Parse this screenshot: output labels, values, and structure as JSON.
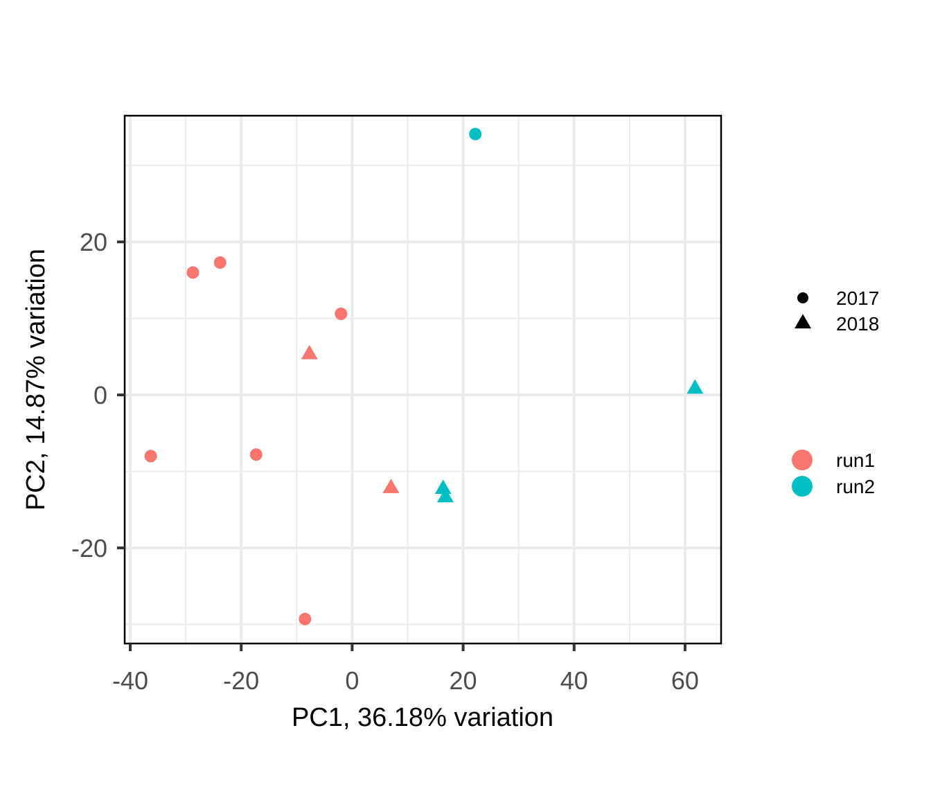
{
  "chart_data": {
    "type": "scatter",
    "title": "",
    "xlabel": "PC1, 36.18% variation",
    "ylabel": "PC2, 14.87% variation",
    "xlim": [
      -41,
      66.5
    ],
    "ylim": [
      -32.5,
      36.5
    ],
    "x_ticks": [
      -40,
      -20,
      0,
      20,
      40,
      60
    ],
    "y_ticks": [
      -20,
      0,
      20
    ],
    "x_tick_labels": [
      "-40",
      "-20",
      "0",
      "20",
      "40",
      "60"
    ],
    "y_tick_labels": [
      "-20",
      "0",
      "20"
    ],
    "grid": true,
    "legend_position": "right",
    "shape_legend": [
      {
        "label": "2017",
        "shape": "circle"
      },
      {
        "label": "2018",
        "shape": "triangle"
      }
    ],
    "color_legend": [
      {
        "label": "run1",
        "color": "#F8766D"
      },
      {
        "label": "run2",
        "color": "#00BFC4"
      }
    ],
    "points": [
      {
        "x": -36.3,
        "y": -8.0,
        "run": "run1",
        "year": "2017"
      },
      {
        "x": -28.7,
        "y": 16.0,
        "run": "run1",
        "year": "2017"
      },
      {
        "x": -23.8,
        "y": 17.3,
        "run": "run1",
        "year": "2017"
      },
      {
        "x": -17.3,
        "y": -7.8,
        "run": "run1",
        "year": "2017"
      },
      {
        "x": -2.0,
        "y": 10.6,
        "run": "run1",
        "year": "2017"
      },
      {
        "x": -8.5,
        "y": -29.3,
        "run": "run1",
        "year": "2017"
      },
      {
        "x": -7.7,
        "y": 5.3,
        "run": "run1",
        "year": "2018"
      },
      {
        "x": 7.0,
        "y": -12.2,
        "run": "run1",
        "year": "2018"
      },
      {
        "x": 22.2,
        "y": 34.1,
        "run": "run2",
        "year": "2017"
      },
      {
        "x": 16.4,
        "y": -12.3,
        "run": "run2",
        "year": "2018"
      },
      {
        "x": 16.8,
        "y": -13.4,
        "run": "run2",
        "year": "2018"
      },
      {
        "x": 61.8,
        "y": 0.8,
        "run": "run2",
        "year": "2018"
      }
    ]
  }
}
